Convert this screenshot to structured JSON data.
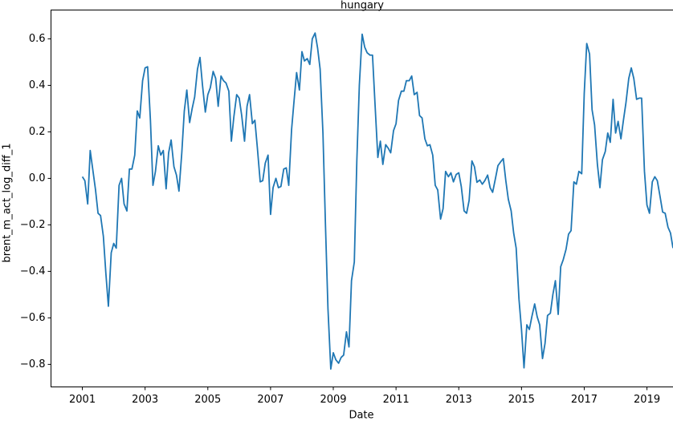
{
  "chart_data": {
    "type": "line",
    "title": "hungary",
    "x_label": "Date",
    "y_label": "brent_m_act_log_diff_1",
    "color": "#1f77b4",
    "x": [
      2001,
      2001.08,
      2001.17,
      2001.25,
      2001.33,
      2001.42,
      2001.5,
      2001.58,
      2001.67,
      2001.75,
      2001.83,
      2001.92,
      2002,
      2002.08,
      2002.17,
      2002.25,
      2002.33,
      2002.42,
      2002.5,
      2002.58,
      2002.67,
      2002.75,
      2002.83,
      2002.92,
      2003,
      2003.08,
      2003.17,
      2003.25,
      2003.33,
      2003.42,
      2003.5,
      2003.58,
      2003.67,
      2003.75,
      2003.83,
      2003.92,
      2004,
      2004.08,
      2004.17,
      2004.25,
      2004.33,
      2004.42,
      2004.5,
      2004.58,
      2004.67,
      2004.75,
      2004.83,
      2004.92,
      2005,
      2005.08,
      2005.17,
      2005.25,
      2005.33,
      2005.42,
      2005.5,
      2005.58,
      2005.67,
      2005.75,
      2005.83,
      2005.92,
      2006,
      2006.08,
      2006.17,
      2006.25,
      2006.33,
      2006.42,
      2006.5,
      2006.58,
      2006.67,
      2006.75,
      2006.83,
      2006.92,
      2007,
      2007.08,
      2007.17,
      2007.25,
      2007.33,
      2007.42,
      2007.5,
      2007.58,
      2007.67,
      2007.75,
      2007.83,
      2007.92,
      2008,
      2008.08,
      2008.17,
      2008.25,
      2008.33,
      2008.42,
      2008.5,
      2008.58,
      2008.67,
      2008.75,
      2008.83,
      2008.92,
      2009,
      2009.08,
      2009.17,
      2009.25,
      2009.33,
      2009.42,
      2009.5,
      2009.58,
      2009.67,
      2009.75,
      2009.83,
      2009.92,
      2010,
      2010.08,
      2010.17,
      2010.25,
      2010.33,
      2010.42,
      2010.5,
      2010.58,
      2010.67,
      2010.75,
      2010.83,
      2010.92,
      2011,
      2011.08,
      2011.17,
      2011.25,
      2011.33,
      2011.42,
      2011.5,
      2011.58,
      2011.67,
      2011.75,
      2011.83,
      2011.92,
      2012,
      2012.08,
      2012.17,
      2012.25,
      2012.33,
      2012.42,
      2012.5,
      2012.58,
      2012.67,
      2012.75,
      2012.83,
      2012.92,
      2013,
      2013.08,
      2013.17,
      2013.25,
      2013.33,
      2013.42,
      2013.5,
      2013.58,
      2013.67,
      2013.75,
      2013.83,
      2013.92,
      2014,
      2014.08,
      2014.17,
      2014.25,
      2014.33,
      2014.42,
      2014.5,
      2014.58,
      2014.67,
      2014.75,
      2014.83,
      2014.92,
      2015,
      2015.08,
      2015.17,
      2015.25,
      2015.33,
      2015.42,
      2015.5,
      2015.58,
      2015.67,
      2015.75,
      2015.83,
      2015.92,
      2016,
      2016.08,
      2016.17,
      2016.25,
      2016.33,
      2016.42,
      2016.5,
      2016.58,
      2016.67,
      2016.75,
      2016.83,
      2016.92,
      2017,
      2017.08,
      2017.17,
      2017.25,
      2017.33,
      2017.42,
      2017.5,
      2017.58,
      2017.67,
      2017.75,
      2017.83,
      2017.92,
      2018,
      2018.08,
      2018.17,
      2018.25,
      2018.33,
      2018.42,
      2018.5,
      2018.58,
      2018.67,
      2018.75,
      2018.83,
      2018.92,
      2019,
      2019.08,
      2019.17,
      2019.25,
      2019.33,
      2019.42,
      2019.5,
      2019.58,
      2019.67,
      2019.75,
      2019.83
    ],
    "values": [
      0.007,
      -0.01,
      -0.11,
      0.12,
      0.04,
      -0.05,
      -0.15,
      -0.16,
      -0.25,
      -0.41,
      -0.55,
      -0.32,
      -0.28,
      -0.3,
      -0.03,
      0,
      -0.11,
      -0.14,
      0.04,
      0.04,
      0.1,
      0.29,
      0.26,
      0.42,
      0.475,
      0.48,
      0.25,
      -0.03,
      0.03,
      0.14,
      0.1,
      0.12,
      -0.045,
      0.11,
      0.165,
      0.05,
      0.014,
      -0.055,
      0.11,
      0.29,
      0.38,
      0.24,
      0.3,
      0.35,
      0.47,
      0.52,
      0.4,
      0.285,
      0.36,
      0.39,
      0.46,
      0.43,
      0.31,
      0.44,
      0.42,
      0.41,
      0.375,
      0.16,
      0.265,
      0.36,
      0.345,
      0.27,
      0.16,
      0.31,
      0.36,
      0.235,
      0.25,
      0.13,
      -0.015,
      -0.01,
      0.065,
      0.1,
      -0.155,
      -0.04,
      0,
      -0.04,
      -0.035,
      0.04,
      0.045,
      -0.03,
      0.21,
      0.335,
      0.455,
      0.38,
      0.545,
      0.505,
      0.515,
      0.49,
      0.6,
      0.625,
      0.56,
      0.47,
      0.195,
      -0.2,
      -0.56,
      -0.82,
      -0.75,
      -0.78,
      -0.795,
      -0.77,
      -0.76,
      -0.66,
      -0.725,
      -0.44,
      -0.36,
      0.075,
      0.4,
      0.62,
      0.565,
      0.54,
      0.53,
      0.53,
      0.32,
      0.09,
      0.16,
      0.06,
      0.145,
      0.13,
      0.11,
      0.205,
      0.235,
      0.335,
      0.375,
      0.375,
      0.42,
      0.42,
      0.44,
      0.36,
      0.37,
      0.27,
      0.26,
      0.17,
      0.14,
      0.145,
      0.1,
      -0.03,
      -0.05,
      -0.175,
      -0.13,
      0.03,
      0.007,
      0.024,
      -0.015,
      0.017,
      0.024,
      -0.035,
      -0.14,
      -0.15,
      -0.095,
      0.075,
      0.05,
      -0.017,
      -0.007,
      -0.025,
      -0.01,
      0.014,
      -0.04,
      -0.06,
      0,
      0.055,
      0.07,
      0.085,
      -0.01,
      -0.09,
      -0.14,
      -0.235,
      -0.3,
      -0.52,
      -0.65,
      -0.815,
      -0.63,
      -0.65,
      -0.595,
      -0.54,
      -0.595,
      -0.63,
      -0.775,
      -0.71,
      -0.59,
      -0.58,
      -0.5,
      -0.44,
      -0.585,
      -0.38,
      -0.35,
      -0.305,
      -0.24,
      -0.225,
      -0.015,
      -0.025,
      0.03,
      0.02,
      0.365,
      0.58,
      0.535,
      0.295,
      0.23,
      0.06,
      -0.04,
      0.08,
      0.115,
      0.195,
      0.155,
      0.34,
      0.195,
      0.245,
      0.17,
      0.25,
      0.325,
      0.43,
      0.475,
      0.43,
      0.34,
      0.345,
      0.345,
      0.03,
      -0.115,
      -0.15,
      -0.015,
      0.007,
      -0.01,
      -0.08,
      -0.145,
      -0.15,
      -0.21,
      -0.235,
      -0.3
    ],
    "xlim": [
      2000,
      2019.83
    ],
    "xticks": [
      2001,
      2003,
      2005,
      2007,
      2009,
      2011,
      2013,
      2015,
      2017,
      2019
    ],
    "ylim": [
      -0.897,
      0.724
    ],
    "yticks": [
      {
        "value": -0.8,
        "label": "−0.8"
      },
      {
        "value": -0.6,
        "label": "−0.6"
      },
      {
        "value": -0.4,
        "label": "−0.4"
      },
      {
        "value": -0.2,
        "label": "−0.2"
      },
      {
        "value": 0,
        "label": "0.0"
      },
      0.2,
      0.4,
      0.6
    ],
    "grid": false
  }
}
